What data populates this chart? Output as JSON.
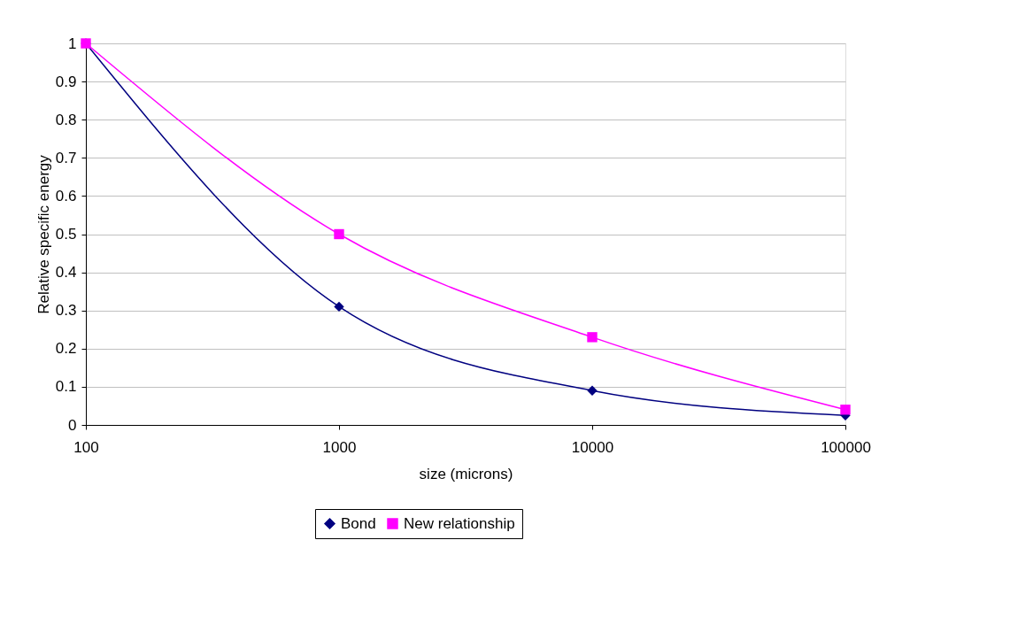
{
  "chart_data": {
    "type": "line",
    "xlabel": "size (microns)",
    "ylabel": "Relative specific energy",
    "x": [
      100,
      1000,
      10000,
      100000
    ],
    "series": [
      {
        "name": "Bond",
        "color": "#000080",
        "marker": "diamond",
        "values": [
          1,
          0.31,
          0.09,
          0.025
        ]
      },
      {
        "name": "New relationship",
        "color": "#ff00ff",
        "marker": "square",
        "values": [
          1,
          0.5,
          0.23,
          0.04
        ]
      }
    ],
    "log": "x",
    "xlim": [
      100,
      100000
    ],
    "xticks": [
      100,
      1000,
      10000,
      100000
    ],
    "ylim": [
      0,
      1
    ],
    "yticks": [
      0,
      0.1,
      0.2,
      0.3,
      0.4,
      0.5,
      0.6,
      0.7,
      0.8,
      0.9,
      1
    ],
    "grid": "y",
    "legend": "bottom",
    "line_style": "solid"
  }
}
